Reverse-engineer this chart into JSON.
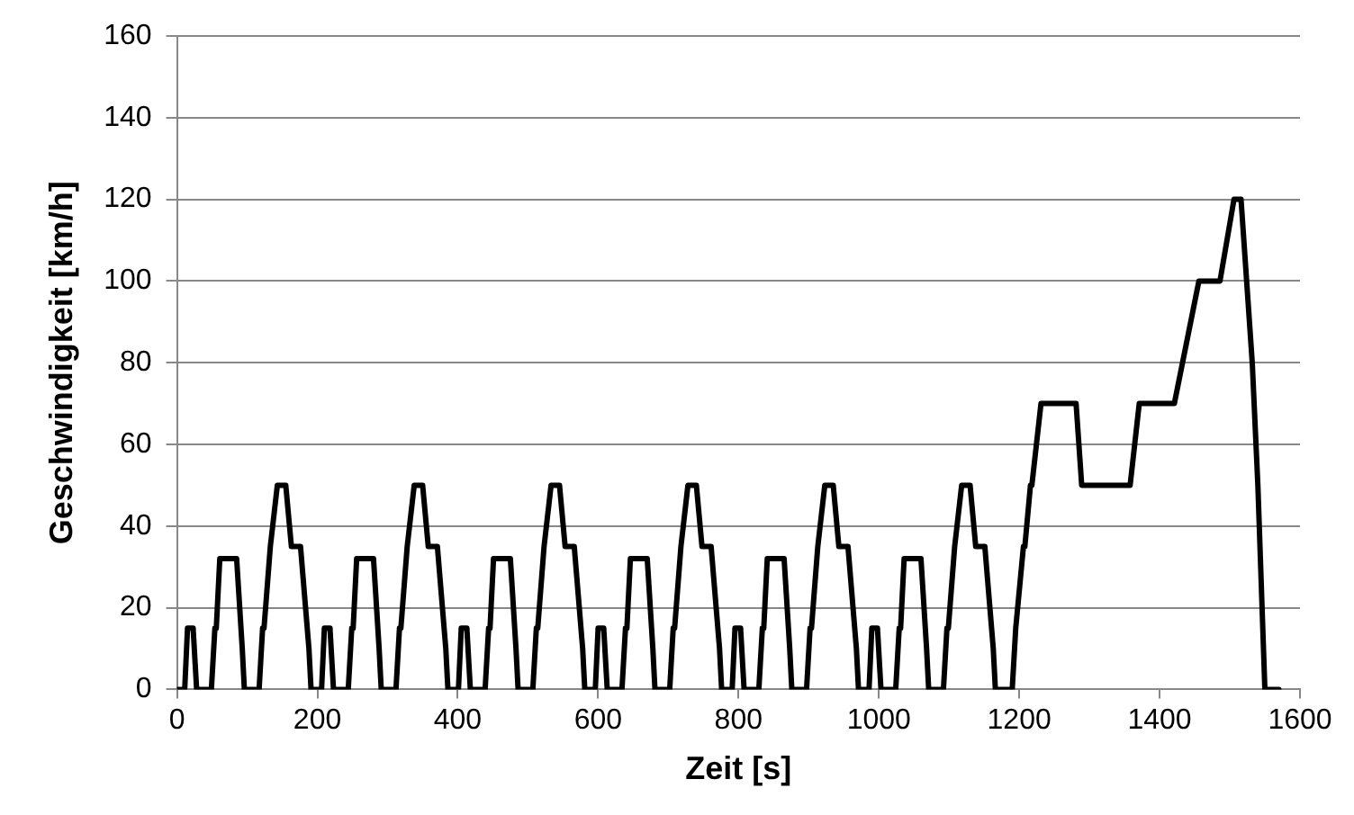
{
  "chart_data": {
    "type": "line",
    "xlabel": "Zeit [s]",
    "ylabel": "Geschwindigkeit [km/h]",
    "xlim": [
      0,
      1600
    ],
    "xticks": [
      0,
      200,
      400,
      600,
      800,
      1000,
      1200,
      1400,
      1600
    ],
    "ylim": [
      0,
      160
    ],
    "yticks": [
      0,
      20,
      40,
      60,
      80,
      100,
      120,
      140,
      160
    ],
    "grid": "y",
    "legend": false,
    "marker": "none",
    "line_style": "solid",
    "series": [
      {
        "color": "#000000",
        "x": [
          0,
          11,
          15,
          23,
          28,
          49,
          54,
          56,
          61,
          85,
          93,
          96,
          117,
          122,
          124,
          133,
          135,
          143,
          155,
          163,
          176,
          188,
          191,
          195,
          206,
          210,
          218,
          223,
          244,
          249,
          251,
          256,
          280,
          288,
          291,
          312,
          317,
          319,
          328,
          330,
          338,
          350,
          358,
          371,
          383,
          386,
          390,
          401,
          405,
          413,
          418,
          439,
          444,
          446,
          451,
          475,
          483,
          486,
          507,
          512,
          514,
          523,
          525,
          533,
          545,
          553,
          566,
          578,
          581,
          585,
          596,
          600,
          608,
          613,
          634,
          639,
          641,
          646,
          670,
          678,
          681,
          702,
          707,
          709,
          718,
          720,
          728,
          740,
          748,
          761,
          773,
          776,
          780,
          791,
          795,
          803,
          808,
          829,
          834,
          836,
          841,
          865,
          873,
          876,
          897,
          902,
          904,
          913,
          915,
          923,
          935,
          943,
          956,
          968,
          971,
          975,
          986,
          990,
          998,
          1003,
          1024,
          1029,
          1031,
          1036,
          1060,
          1068,
          1071,
          1092,
          1097,
          1099,
          1108,
          1110,
          1118,
          1130,
          1138,
          1151,
          1163,
          1166,
          1170,
          1190,
          1195,
          1197,
          1206,
          1208,
          1216,
          1218,
          1231,
          1281,
          1289,
          1358,
          1371,
          1421,
          1456,
          1486,
          1506,
          1516,
          1532,
          1540,
          1550,
          1570
        ],
        "values": [
          0,
          0,
          15,
          15,
          0,
          0,
          15,
          15,
          32,
          32,
          10,
          0,
          0,
          15,
          15,
          35,
          35,
          50,
          50,
          35,
          35,
          10,
          0,
          0,
          0,
          15,
          15,
          0,
          0,
          15,
          15,
          32,
          32,
          10,
          0,
          0,
          15,
          15,
          35,
          35,
          50,
          50,
          35,
          35,
          10,
          0,
          0,
          0,
          15,
          15,
          0,
          0,
          15,
          15,
          32,
          32,
          10,
          0,
          0,
          15,
          15,
          35,
          35,
          50,
          50,
          35,
          35,
          10,
          0,
          0,
          0,
          15,
          15,
          0,
          0,
          15,
          15,
          32,
          32,
          10,
          0,
          0,
          15,
          15,
          35,
          35,
          50,
          50,
          35,
          35,
          10,
          0,
          0,
          0,
          15,
          15,
          0,
          0,
          15,
          15,
          32,
          32,
          10,
          0,
          0,
          15,
          15,
          35,
          35,
          50,
          50,
          35,
          35,
          10,
          0,
          0,
          0,
          15,
          15,
          0,
          0,
          15,
          15,
          32,
          32,
          10,
          0,
          0,
          15,
          15,
          35,
          35,
          50,
          50,
          35,
          35,
          10,
          0,
          0,
          0,
          15,
          15,
          35,
          35,
          50,
          50,
          70,
          70,
          50,
          50,
          70,
          70,
          100,
          100,
          120,
          120,
          80,
          50,
          0,
          0
        ]
      }
    ]
  }
}
